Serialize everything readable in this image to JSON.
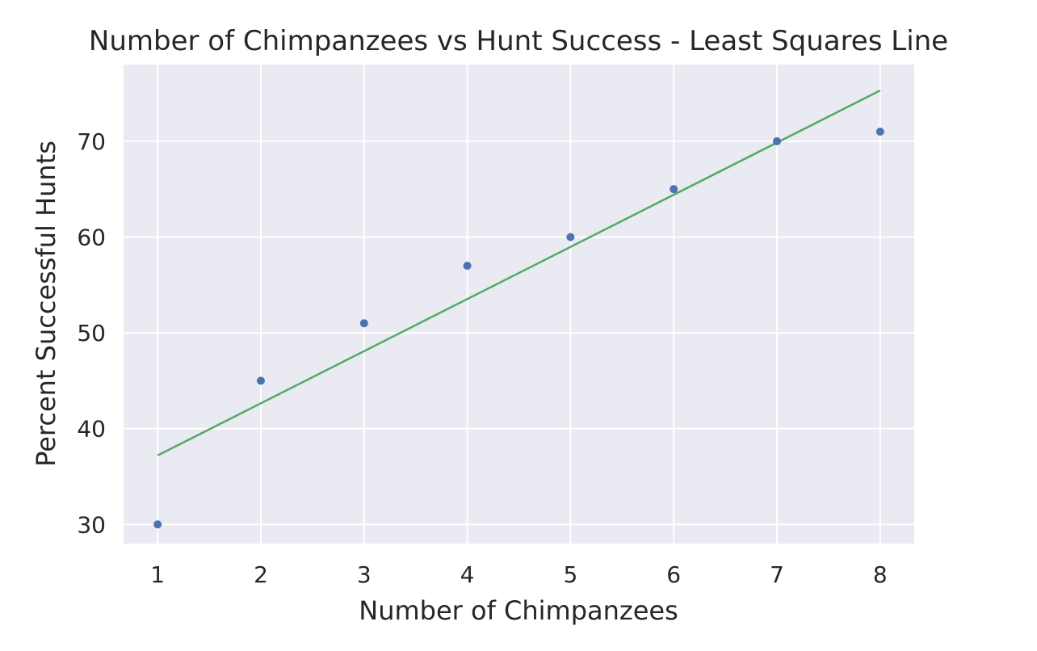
{
  "chart_data": {
    "type": "scatter",
    "title": "Number of Chimpanzees vs Hunt Success - Least Squares Line",
    "xlabel": "Number of Chimpanzees",
    "ylabel": "Percent Successful Hunts",
    "xlim": [
      0.67,
      8.33
    ],
    "ylim": [
      28,
      78
    ],
    "xticks": [
      1,
      2,
      3,
      4,
      5,
      6,
      7,
      8
    ],
    "yticks": [
      30,
      40,
      50,
      60,
      70
    ],
    "grid": true,
    "series": [
      {
        "kind": "scatter",
        "color": "#4c72b0",
        "x": [
          1,
          2,
          3,
          4,
          5,
          6,
          7,
          8
        ],
        "y": [
          30,
          45,
          51,
          57,
          60,
          65,
          70,
          71
        ]
      },
      {
        "kind": "line",
        "color": "#55a868",
        "x": [
          1,
          8
        ],
        "y": [
          37.2,
          75.3
        ]
      }
    ]
  }
}
